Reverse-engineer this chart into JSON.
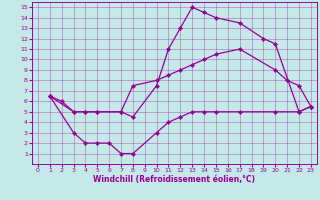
{
  "xlabel": "Windchill (Refroidissement éolien,°C)",
  "bg_color": "#c5e8e8",
  "line_color": "#990099",
  "xlim": [
    -0.5,
    23.5
  ],
  "ylim": [
    0,
    15.5
  ],
  "xticks": [
    0,
    1,
    2,
    3,
    4,
    5,
    6,
    7,
    8,
    9,
    10,
    11,
    12,
    13,
    14,
    15,
    16,
    17,
    18,
    19,
    20,
    21,
    22,
    23
  ],
  "yticks": [
    1,
    2,
    3,
    4,
    5,
    6,
    7,
    8,
    9,
    10,
    11,
    12,
    13,
    14,
    15
  ],
  "line1_x": [
    1,
    2,
    3,
    4,
    5,
    7,
    8,
    10,
    11,
    12,
    13,
    14,
    15,
    17,
    19,
    20,
    22,
    23
  ],
  "line1_y": [
    6.5,
    6,
    5,
    5,
    5,
    5,
    4.5,
    7.5,
    11,
    13,
    15,
    14.5,
    14,
    13.5,
    12,
    11.5,
    5,
    5.5
  ],
  "line2_x": [
    1,
    3,
    4,
    5,
    6,
    7,
    8,
    10,
    11,
    12,
    13,
    14,
    15,
    17,
    20,
    22,
    23
  ],
  "line2_y": [
    6.5,
    3,
    2,
    2,
    2,
    1,
    1,
    3,
    4,
    4.5,
    5,
    5,
    5,
    5,
    5,
    5,
    5.5
  ],
  "line3_x": [
    1,
    3,
    4,
    5,
    7,
    8,
    10,
    11,
    12,
    13,
    14,
    15,
    17,
    20,
    21,
    22,
    23
  ],
  "line3_y": [
    6.5,
    5,
    5,
    5,
    5,
    7.5,
    8,
    8.5,
    9,
    9.5,
    10,
    10.5,
    11,
    9,
    8,
    7.5,
    5.5
  ]
}
